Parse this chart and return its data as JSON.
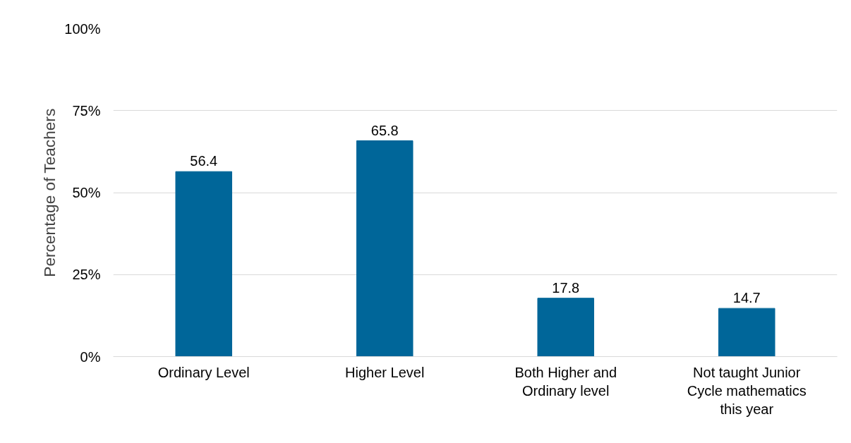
{
  "chart_data": {
    "type": "bar",
    "ylabel": "Percentage of Teachers",
    "categories": [
      "Ordinary Level",
      "Higher Level",
      "Both Higher and Ordinary level",
      "Not taught Junior Cycle mathematics this year"
    ],
    "values": [
      56.4,
      65.8,
      17.8,
      14.7
    ],
    "color": "#006699",
    "ylim": [
      0,
      100
    ],
    "yticks": [
      {
        "value": 0,
        "label": "0%"
      },
      {
        "value": 25,
        "label": "25%"
      },
      {
        "value": 50,
        "label": "50%"
      },
      {
        "value": 75,
        "label": "75%"
      },
      {
        "value": 100,
        "label": "100%"
      }
    ],
    "grid": "y",
    "data_labels": true
  }
}
